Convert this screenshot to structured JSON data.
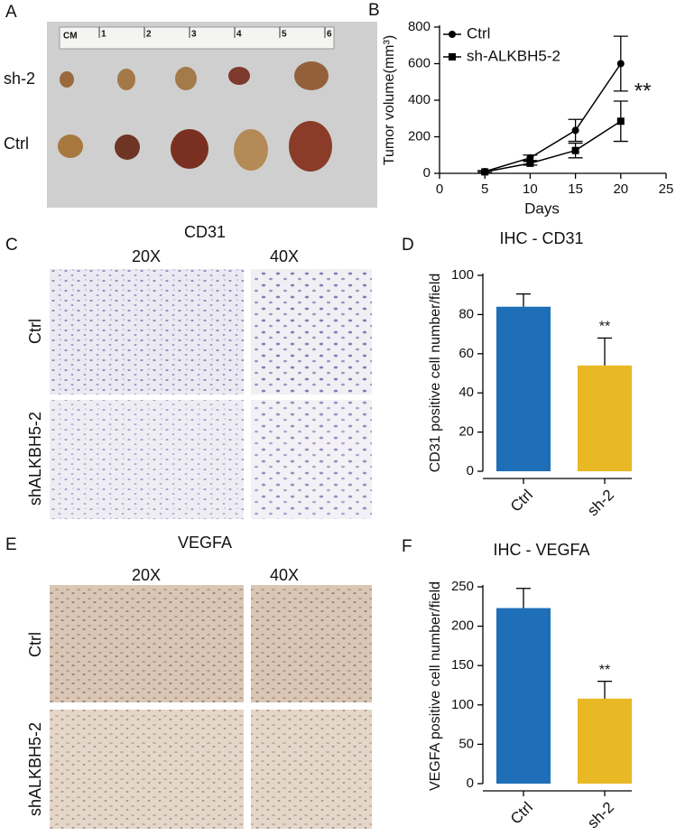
{
  "panels": {
    "a": {
      "letter": "A",
      "ruler": [
        "CM",
        "1",
        "2",
        "3",
        "4",
        "5",
        "6"
      ],
      "rows": [
        "sh-2",
        "Ctrl"
      ]
    },
    "c": {
      "letter": "C",
      "title": "CD31",
      "columns": [
        "20X",
        "40X"
      ],
      "rows": [
        "Ctrl",
        "shALKBH5-2"
      ]
    },
    "e": {
      "letter": "E",
      "title": "VEGFA",
      "columns": [
        "20X",
        "40X"
      ],
      "rows": [
        "Ctrl",
        "shALKBH5-2"
      ]
    }
  },
  "chart_data": [
    {
      "type": "line",
      "letter": "B",
      "x_label": "Days",
      "y_label": "Tumor volume(mm³)",
      "x": [
        5,
        10,
        15,
        20
      ],
      "series": [
        {
          "name": "Ctrl",
          "color": "#000000",
          "marker": "circle",
          "values": [
            10,
            85,
            235,
            600
          ],
          "errors": [
            5,
            15,
            60,
            150
          ]
        },
        {
          "name": "sh-ALKBH5-2",
          "color": "#000000",
          "marker": "square",
          "values": [
            8,
            55,
            125,
            285
          ],
          "errors": [
            5,
            10,
            40,
            110
          ]
        }
      ],
      "xlim": [
        0,
        25
      ],
      "xticks": [
        0,
        5,
        10,
        15,
        20,
        25
      ],
      "ylim": [
        0,
        800
      ],
      "yticks": [
        0,
        200,
        400,
        600,
        800
      ],
      "legend": "upper-left",
      "annotation": "**"
    },
    {
      "type": "bar",
      "letter": "D",
      "title": "IHC - CD31",
      "y_label": "CD31 positive cell number/field",
      "categories": [
        "Ctrl",
        "sh-2"
      ],
      "values": [
        84,
        54
      ],
      "errors": [
        6.5,
        14
      ],
      "colors": [
        "#1f6fb8",
        "#e8b825"
      ],
      "ylim": [
        0,
        100
      ],
      "yticks": [
        0,
        20,
        40,
        60,
        80,
        100
      ],
      "annotation": "**"
    },
    {
      "type": "bar",
      "letter": "F",
      "title": "IHC - VEGFA",
      "y_label": "VEGFA positive cell number/field",
      "categories": [
        "Ctrl",
        "sh-2"
      ],
      "values": [
        223,
        108
      ],
      "errors": [
        25,
        22
      ],
      "colors": [
        "#1f6fb8",
        "#e8b825"
      ],
      "ylim": [
        0,
        250
      ],
      "yticks": [
        0,
        50,
        100,
        150,
        200,
        250
      ],
      "annotation": "**"
    }
  ]
}
